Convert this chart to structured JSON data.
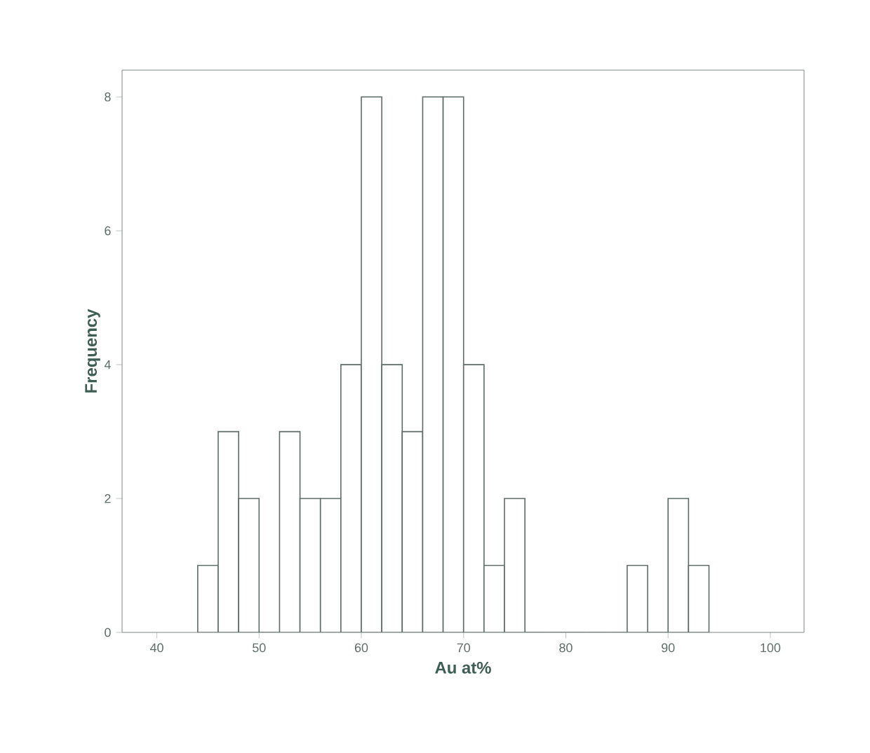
{
  "chart_data": {
    "type": "histogram",
    "xlabel": "Au at%",
    "ylabel": "Frequency",
    "bins": [
      44,
      46,
      48,
      50,
      52,
      54,
      56,
      58,
      60,
      62,
      64,
      66,
      68,
      70,
      72,
      74,
      76,
      78,
      80,
      82,
      84,
      86,
      88,
      90,
      92,
      94
    ],
    "values": [
      1,
      3,
      2,
      0,
      3,
      2,
      2,
      4,
      8,
      4,
      3,
      8,
      8,
      4,
      1,
      2,
      0,
      0,
      0,
      0,
      0,
      1,
      0,
      2,
      1
    ],
    "color": "#ffffff",
    "xlim": [
      36.6,
      103.3
    ],
    "ylim": [
      0,
      8.4
    ],
    "xticks": [
      40,
      50,
      60,
      70,
      80,
      90,
      100
    ],
    "yticks": [
      0,
      2,
      4,
      6,
      8
    ],
    "grid": false
  }
}
